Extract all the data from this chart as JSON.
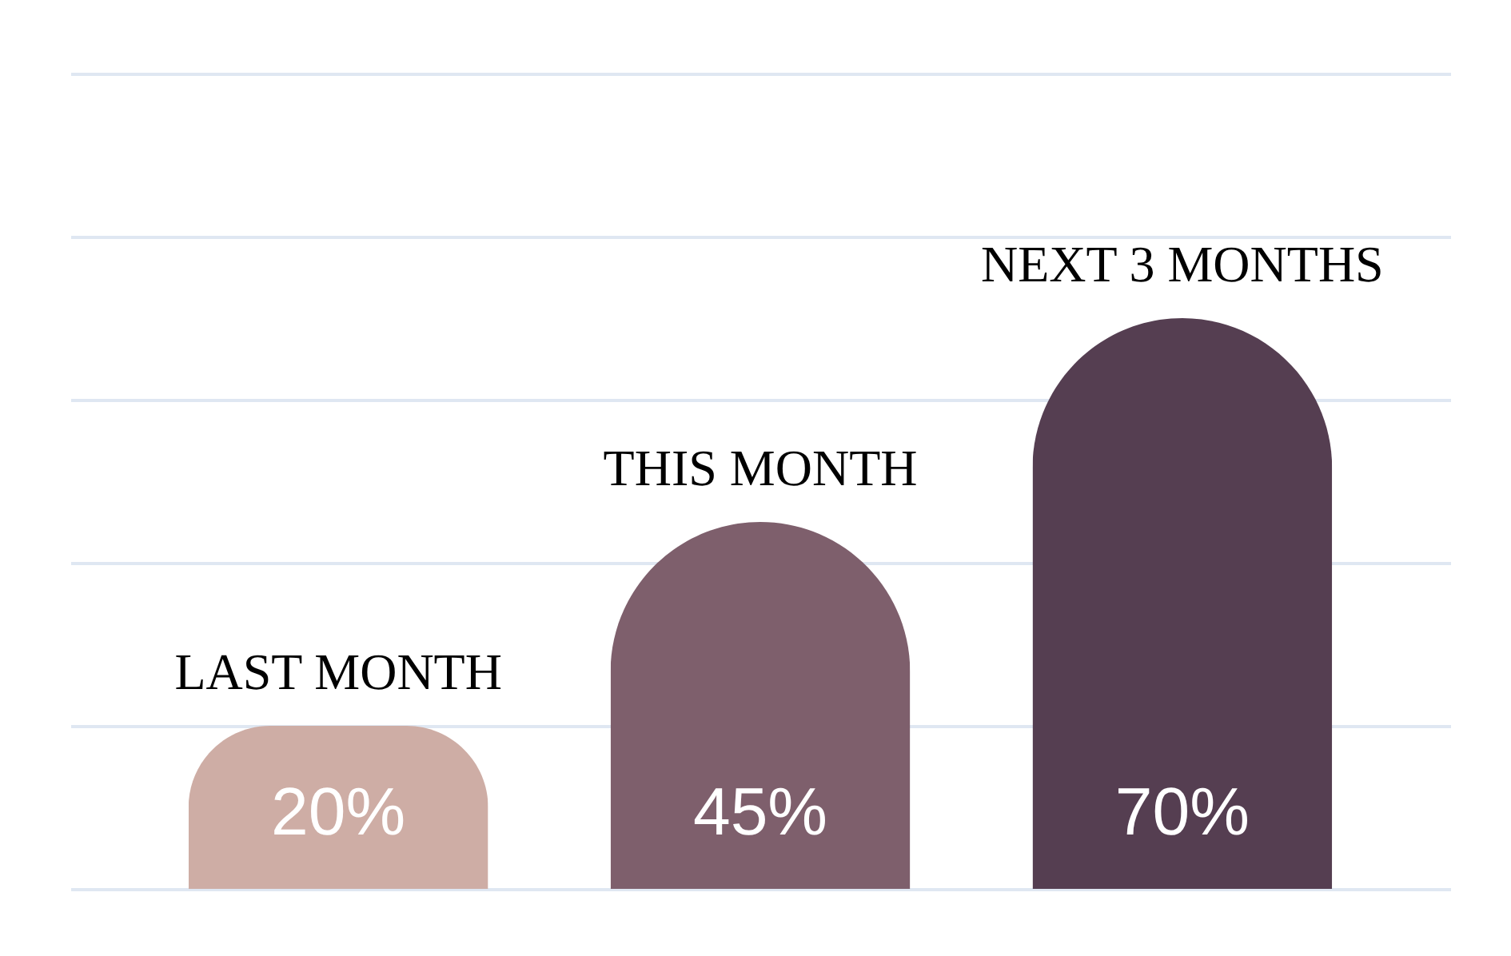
{
  "chart_data": {
    "type": "bar",
    "categories": [
      "LAST MONTH",
      "THIS MONTH",
      "NEXT 3 MONTHS"
    ],
    "values": [
      20,
      45,
      70
    ],
    "colors": [
      "#ceada5",
      "#7e5f6c",
      "#553e51"
    ],
    "value_labels": [
      "20%",
      "45%",
      "70%"
    ],
    "ylim": [
      0,
      100
    ],
    "yticks": [
      {
        "value": 0,
        "label": null
      },
      {
        "value": 20,
        "label": null
      },
      {
        "value": 40,
        "label": null
      },
      {
        "value": 60,
        "label": null
      },
      {
        "value": 80,
        "label": null
      },
      {
        "value": 100,
        "label": null
      }
    ],
    "grid": "y",
    "tick_labels": false
  }
}
